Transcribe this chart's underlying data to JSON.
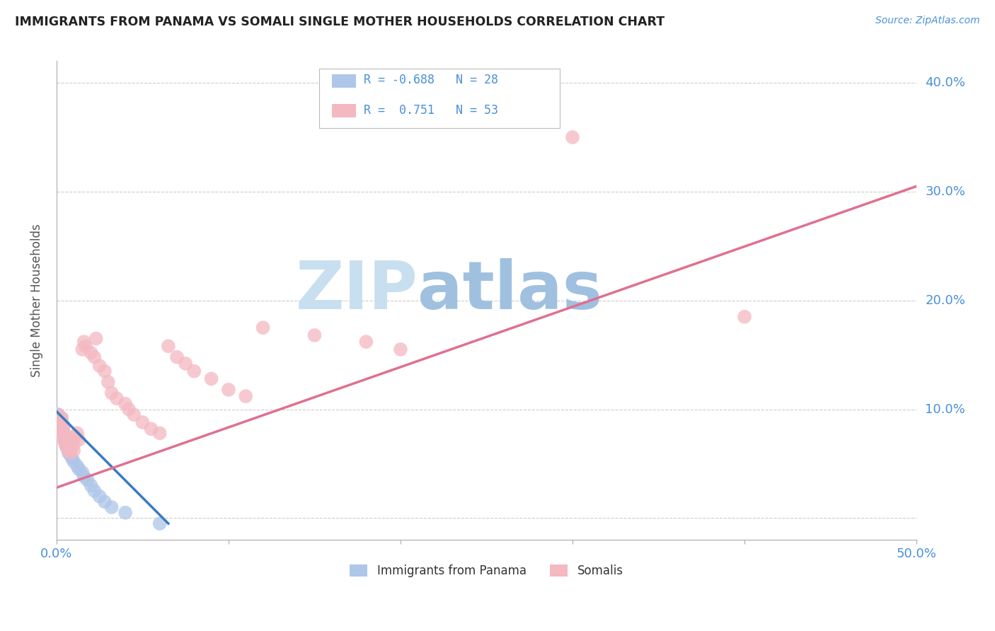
{
  "title": "IMMIGRANTS FROM PANAMA VS SOMALI SINGLE MOTHER HOUSEHOLDS CORRELATION CHART",
  "source": "Source: ZipAtlas.com",
  "xlabel": "",
  "ylabel": "Single Mother Households",
  "xlim": [
    0.0,
    0.5
  ],
  "ylim": [
    -0.02,
    0.42
  ],
  "ylim_display": [
    0.0,
    0.42
  ],
  "xticks": [
    0.0,
    0.1,
    0.2,
    0.3,
    0.4,
    0.5
  ],
  "yticks": [
    0.0,
    0.1,
    0.2,
    0.3,
    0.4
  ],
  "xtick_labels": [
    "0.0%",
    "",
    "",
    "",
    "",
    "50.0%"
  ],
  "ytick_labels": [
    "",
    "10.0%",
    "20.0%",
    "30.0%",
    "40.0%"
  ],
  "legend_labels": [
    "Immigrants from Panama",
    "Somalis"
  ],
  "panama_color": "#aec6e8",
  "somali_color": "#f4b8c1",
  "panama_line_color": "#3a7abf",
  "somali_line_color": "#e07090",
  "watermark_zip": "ZIP",
  "watermark_atlas": "atlas",
  "watermark_color_zip": "#c5dff0",
  "watermark_color_atlas": "#a8c8e8",
  "background_color": "#ffffff",
  "panama_points": [
    [
      0.001,
      0.095
    ],
    [
      0.001,
      0.09
    ],
    [
      0.002,
      0.085
    ],
    [
      0.002,
      0.08
    ],
    [
      0.003,
      0.092
    ],
    [
      0.003,
      0.088
    ],
    [
      0.004,
      0.082
    ],
    [
      0.004,
      0.078
    ],
    [
      0.005,
      0.075
    ],
    [
      0.005,
      0.07
    ],
    [
      0.006,
      0.068
    ],
    [
      0.006,
      0.065
    ],
    [
      0.007,
      0.06
    ],
    [
      0.008,
      0.058
    ],
    [
      0.009,
      0.055
    ],
    [
      0.01,
      0.052
    ],
    [
      0.012,
      0.048
    ],
    [
      0.013,
      0.045
    ],
    [
      0.015,
      0.042
    ],
    [
      0.016,
      0.038
    ],
    [
      0.018,
      0.035
    ],
    [
      0.02,
      0.03
    ],
    [
      0.022,
      0.025
    ],
    [
      0.025,
      0.02
    ],
    [
      0.028,
      0.015
    ],
    [
      0.032,
      0.01
    ],
    [
      0.04,
      0.005
    ],
    [
      0.06,
      -0.005
    ]
  ],
  "somali_points": [
    [
      0.001,
      0.095
    ],
    [
      0.001,
      0.082
    ],
    [
      0.002,
      0.088
    ],
    [
      0.002,
      0.075
    ],
    [
      0.003,
      0.092
    ],
    [
      0.003,
      0.08
    ],
    [
      0.004,
      0.085
    ],
    [
      0.004,
      0.078
    ],
    [
      0.005,
      0.072
    ],
    [
      0.005,
      0.068
    ],
    [
      0.006,
      0.075
    ],
    [
      0.006,
      0.065
    ],
    [
      0.007,
      0.07
    ],
    [
      0.007,
      0.062
    ],
    [
      0.008,
      0.068
    ],
    [
      0.008,
      0.06
    ],
    [
      0.009,
      0.072
    ],
    [
      0.009,
      0.065
    ],
    [
      0.01,
      0.068
    ],
    [
      0.01,
      0.062
    ],
    [
      0.011,
      0.075
    ],
    [
      0.012,
      0.078
    ],
    [
      0.013,
      0.072
    ],
    [
      0.015,
      0.155
    ],
    [
      0.016,
      0.162
    ],
    [
      0.017,
      0.158
    ],
    [
      0.02,
      0.152
    ],
    [
      0.022,
      0.148
    ],
    [
      0.023,
      0.165
    ],
    [
      0.025,
      0.14
    ],
    [
      0.028,
      0.135
    ],
    [
      0.03,
      0.125
    ],
    [
      0.032,
      0.115
    ],
    [
      0.035,
      0.11
    ],
    [
      0.04,
      0.105
    ],
    [
      0.042,
      0.1
    ],
    [
      0.045,
      0.095
    ],
    [
      0.05,
      0.088
    ],
    [
      0.055,
      0.082
    ],
    [
      0.06,
      0.078
    ],
    [
      0.065,
      0.158
    ],
    [
      0.07,
      0.148
    ],
    [
      0.075,
      0.142
    ],
    [
      0.08,
      0.135
    ],
    [
      0.09,
      0.128
    ],
    [
      0.1,
      0.118
    ],
    [
      0.11,
      0.112
    ],
    [
      0.12,
      0.175
    ],
    [
      0.15,
      0.168
    ],
    [
      0.18,
      0.162
    ],
    [
      0.2,
      0.155
    ],
    [
      0.3,
      0.35
    ],
    [
      0.4,
      0.185
    ]
  ],
  "somali_line_x": [
    0.0,
    0.5
  ],
  "somali_line_y": [
    0.028,
    0.305
  ],
  "panama_line_x": [
    0.0,
    0.065
  ],
  "panama_line_y": [
    0.098,
    -0.005
  ]
}
